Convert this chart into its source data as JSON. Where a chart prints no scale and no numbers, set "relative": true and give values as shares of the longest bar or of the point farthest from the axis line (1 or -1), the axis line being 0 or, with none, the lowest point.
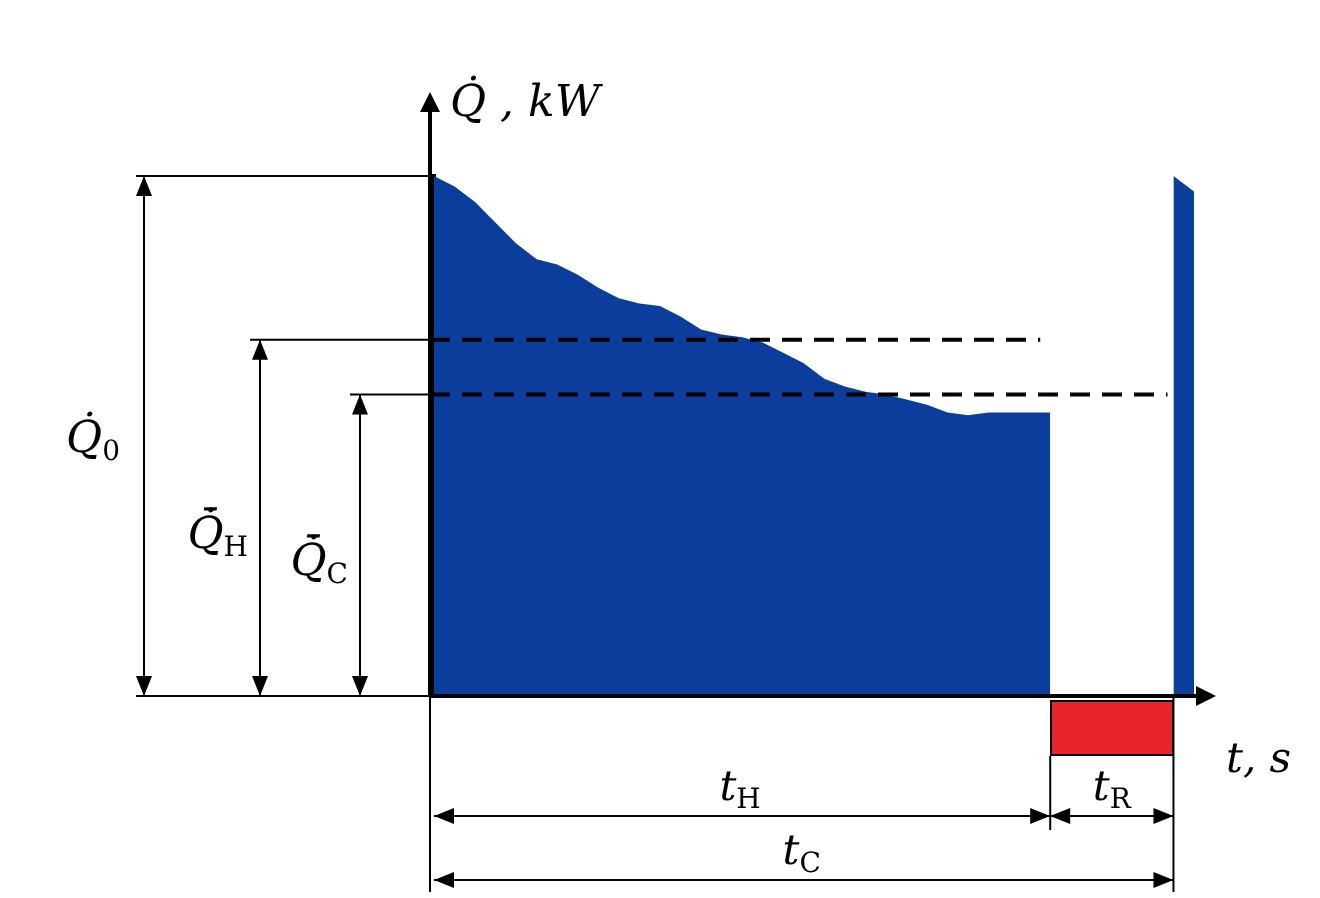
{
  "chart_data": {
    "type": "area",
    "relative": true,
    "ylabel": "Q̇ , kW",
    "xlabel": "t, s",
    "categories": [
      null,
      null,
      null,
      null,
      null,
      null,
      null,
      null,
      null,
      null,
      null,
      null,
      null,
      null,
      null,
      null,
      null,
      null,
      null,
      null,
      null,
      null,
      null,
      null,
      null,
      null,
      null,
      null,
      null,
      null,
      null,
      null,
      null,
      null,
      null,
      null,
      null,
      null
    ],
    "series": [
      {
        "color": "#0a3d9c",
        "values": [
          1.0,
          0.98,
          0.95,
          0.91,
          0.87,
          0.84,
          0.83,
          0.81,
          0.785,
          0.765,
          0.755,
          0.75,
          0.73,
          0.705,
          0.695,
          0.69,
          0.68,
          0.66,
          0.64,
          0.61,
          0.595,
          0.585,
          0.58,
          0.57,
          0.56,
          0.545,
          0.54,
          0.545,
          0.545,
          0.545,
          0.545,
          null,
          null,
          null,
          null,
          null,
          null,
          null
        ]
      },
      {
        "color": "#0a3d9c",
        "values": [
          null,
          null,
          null,
          null,
          null,
          null,
          null,
          null,
          null,
          null,
          null,
          null,
          null,
          null,
          null,
          null,
          null,
          null,
          null,
          null,
          null,
          null,
          null,
          null,
          null,
          null,
          null,
          null,
          null,
          null,
          null,
          null,
          null,
          null,
          null,
          null,
          1.0,
          0.97
        ]
      }
    ],
    "ref_lines": [
      {
        "axis": "y",
        "value": 0.685,
        "line_style": "dashed"
      },
      {
        "axis": "y",
        "value": 0.58,
        "line_style": "dashed"
      }
    ],
    "annotations": [
      "Q̇$_{0}$",
      "t$_{H}$",
      "t$_{R}$",
      "t$_{C}$",
      "Q̇̄$_{H}$",
      "Q̇̄$_{C}$"
    ]
  }
}
